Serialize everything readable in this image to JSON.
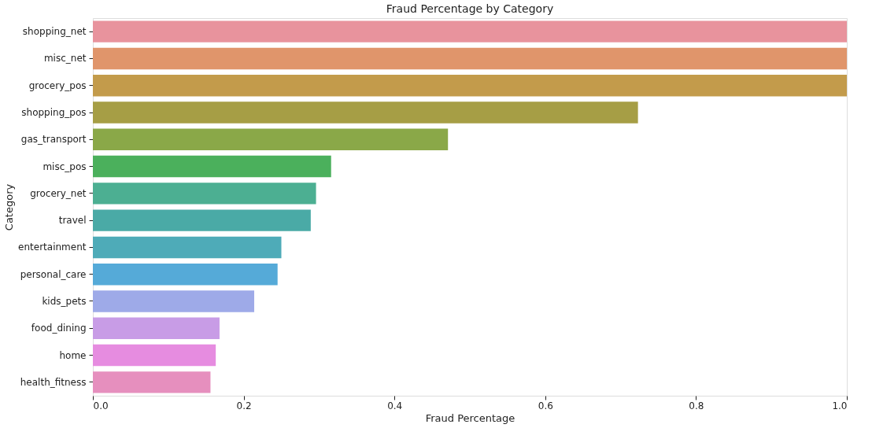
{
  "chart_data": {
    "type": "bar",
    "orientation": "horizontal",
    "title": "Fraud Percentage by Category",
    "xlabel": "Fraud Percentage",
    "ylabel": "Category",
    "categories": [
      "shopping_net",
      "misc_net",
      "grocery_pos",
      "shopping_pos",
      "gas_transport",
      "misc_pos",
      "grocery_net",
      "travel",
      "entertainment",
      "personal_care",
      "kids_pets",
      "food_dining",
      "home",
      "health_fitness"
    ],
    "values": [
      1.0,
      1.0,
      1.0,
      0.723,
      0.471,
      0.316,
      0.296,
      0.289,
      0.25,
      0.245,
      0.214,
      0.168,
      0.163,
      0.156
    ],
    "colors": [
      "#e8939d",
      "#e0956b",
      "#c39b4b",
      "#a69e45",
      "#8aa848",
      "#4bb05c",
      "#4caf92",
      "#4aaaa6",
      "#4eabb8",
      "#55aad8",
      "#9eaae8",
      "#c89ce6",
      "#e68ce0",
      "#e68fbe"
    ],
    "xlim": [
      0,
      1.0
    ],
    "xticks": [
      {
        "value": 0,
        "label": "0.0"
      },
      0.2,
      0.4,
      0.6,
      0.8,
      {
        "value": 1,
        "label": "1.0"
      }
    ],
    "grid": false,
    "legend": false
  }
}
